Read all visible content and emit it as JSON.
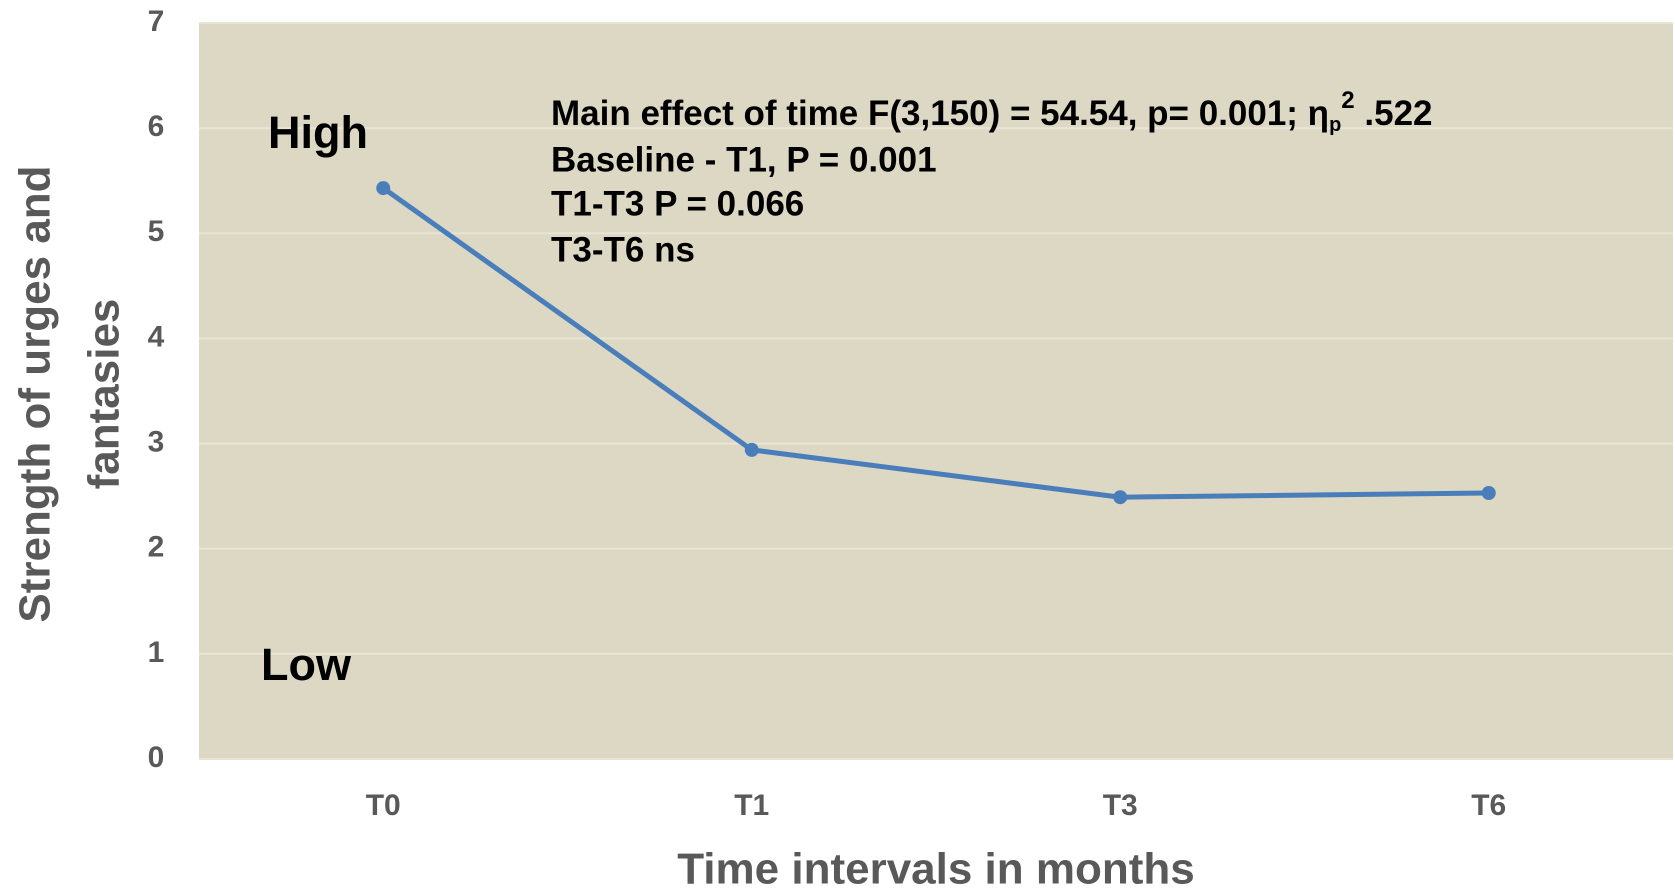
{
  "chart_data": {
    "type": "line",
    "categories": [
      "T0",
      "T1",
      "T3",
      "T6"
    ],
    "series": [
      {
        "color": "#4a7ebb",
        "values": [
          5.43,
          2.94,
          2.49,
          2.53
        ]
      }
    ],
    "ylim": [
      0,
      7
    ],
    "yticks": [
      0,
      1,
      2,
      3,
      4,
      5,
      6,
      7
    ],
    "grid": true,
    "xlabel": "Time intervals in months",
    "ylabel_lines": [
      "Strength of urges and",
      "fantasies"
    ],
    "annotations": {
      "high": "High",
      "low": "Low",
      "stats_first": {
        "text": "Main effect of time F(3,150) = 54.54, p= 0.001; η",
        "subscript": "p",
        "superscript": "2",
        "tail": " .522"
      },
      "stats_lines": [
        "Baseline - T1, P = 0.001",
        "T1-T3 P = 0.066",
        "T3-T6 ns"
      ]
    }
  }
}
